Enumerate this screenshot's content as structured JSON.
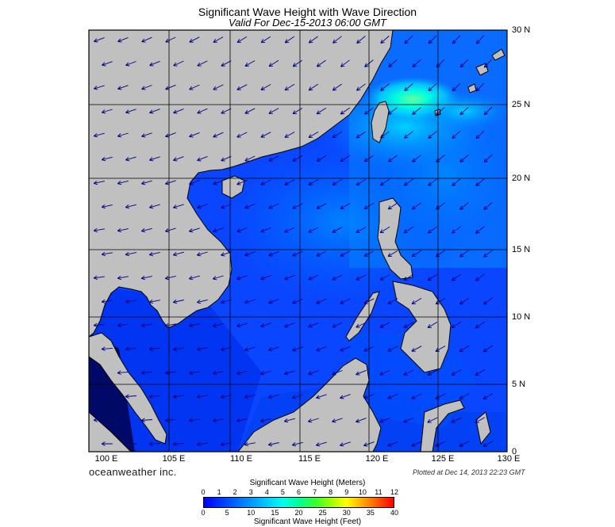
{
  "title": "Significant Wave Height with Wave Direction",
  "subtitle": "Valid For Dec-15-2013 06:00 GMT",
  "brand": "oceanweather inc.",
  "plotted": "Plotted at Dec 14, 2013 22:23 GMT",
  "lon_labels": [
    "100 E",
    "105 E",
    "110 E",
    "115 E",
    "120 E",
    "125 E",
    "130 E"
  ],
  "lat_labels": [
    "30 N",
    "25 N",
    "20 N",
    "15 N",
    "10 N",
    "5 N",
    "0"
  ],
  "legend": {
    "meters_title": "Significant Wave Height (Meters)",
    "feet_title": "Significant Wave Height (Feet)",
    "meters_ticks": [
      "0",
      "1",
      "2",
      "3",
      "4",
      "5",
      "6",
      "7",
      "8",
      "9",
      "10",
      "11",
      "12"
    ],
    "feet_ticks": [
      "0",
      "5",
      "10",
      "15",
      "20",
      "25",
      "30",
      "35",
      "40"
    ],
    "colors": [
      "#0000ff",
      "#0033ff",
      "#0066ff",
      "#0099ff",
      "#00ccff",
      "#00ffee",
      "#00ff99",
      "#33ff33",
      "#99ff00",
      "#ffff00",
      "#ffaa00",
      "#ff5500",
      "#ff0000"
    ]
  },
  "colors": {
    "land": "#c0c0c0",
    "coast": "#000000",
    "grid": "#000000",
    "arrow": "#000080"
  }
}
